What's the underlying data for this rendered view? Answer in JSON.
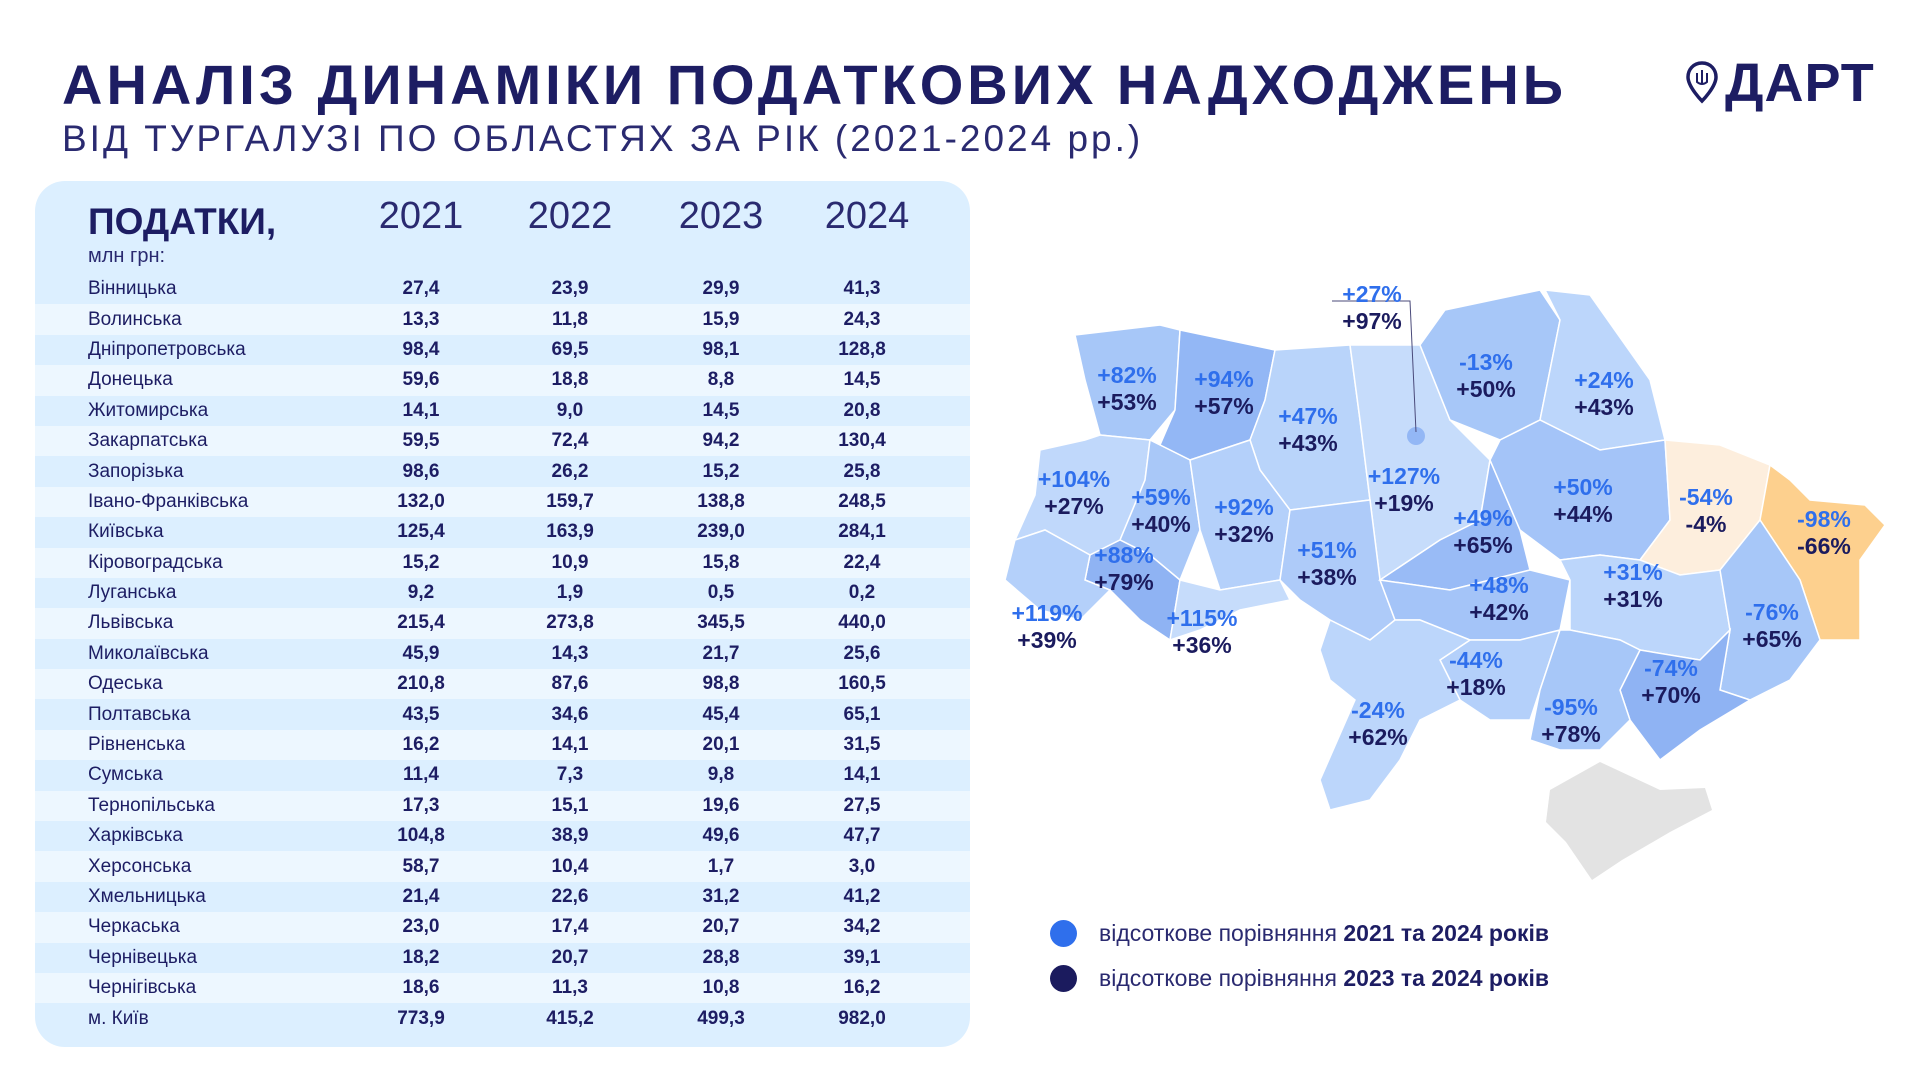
{
  "header": {
    "title": "АНАЛІЗ ДИНАМІКИ ПОДАТКОВИХ НАДХОДЖЕНЬ",
    "subtitle": "ВІД ТУРГАЛУЗІ ПО ОБЛАСТЯХ ЗА РІК (2021-2024 рр.)",
    "logo": "ДАРТ"
  },
  "colors": {
    "accent_blue": "#2f6fec",
    "dark_navy": "#1b1b5e",
    "panel": "#dcefff",
    "kharkiv": "#fdeedd",
    "luhansk": "#fdd08e",
    "crimea": "#e3e3e3"
  },
  "chart_data": [
    {
      "type": "table",
      "title": "ПОДАТКИ,",
      "unit": "млн грн:",
      "columns": [
        "2021",
        "2022",
        "2023",
        "2024"
      ],
      "rows": [
        {
          "region": "Вінницька",
          "values": [
            "27,4",
            "23,9",
            "29,9",
            "41,3"
          ]
        },
        {
          "region": "Волинська",
          "values": [
            "13,3",
            "11,8",
            "15,9",
            "24,3"
          ]
        },
        {
          "region": "Дніпропетровська",
          "values": [
            "98,4",
            "69,5",
            "98,1",
            "128,8"
          ]
        },
        {
          "region": "Донецька",
          "values": [
            "59,6",
            "18,8",
            "8,8",
            "14,5"
          ]
        },
        {
          "region": "Житомирська",
          "values": [
            "14,1",
            "9,0",
            "14,5",
            "20,8"
          ]
        },
        {
          "region": "Закарпатська",
          "values": [
            "59,5",
            "72,4",
            "94,2",
            "130,4"
          ]
        },
        {
          "region": "Запорізька",
          "values": [
            "98,6",
            "26,2",
            "15,2",
            "25,8"
          ]
        },
        {
          "region": "Івано-Франківська",
          "values": [
            "132,0",
            "159,7",
            "138,8",
            "248,5"
          ]
        },
        {
          "region": "Київська",
          "values": [
            "125,4",
            "163,9",
            "239,0",
            "284,1"
          ]
        },
        {
          "region": "Кіровоградська",
          "values": [
            "15,2",
            "10,9",
            "15,8",
            "22,4"
          ]
        },
        {
          "region": "Луганська",
          "values": [
            "9,2",
            "1,9",
            "0,5",
            "0,2"
          ]
        },
        {
          "region": "Львівська",
          "values": [
            "215,4",
            "273,8",
            "345,5",
            "440,0"
          ]
        },
        {
          "region": "Миколаївська",
          "values": [
            "45,9",
            "14,3",
            "21,7",
            "25,6"
          ]
        },
        {
          "region": "Одеська",
          "values": [
            "210,8",
            "87,6",
            "98,8",
            "160,5"
          ]
        },
        {
          "region": "Полтавська",
          "values": [
            "43,5",
            "34,6",
            "45,4",
            "65,1"
          ]
        },
        {
          "region": "Рівненська",
          "values": [
            "16,2",
            "14,1",
            "20,1",
            "31,5"
          ]
        },
        {
          "region": "Сумська",
          "values": [
            "11,4",
            "7,3",
            "9,8",
            "14,1"
          ]
        },
        {
          "region": "Тернопільська",
          "values": [
            "17,3",
            "15,1",
            "19,6",
            "27,5"
          ]
        },
        {
          "region": "Харківська",
          "values": [
            "104,8",
            "38,9",
            "49,6",
            "47,7"
          ]
        },
        {
          "region": "Херсонська",
          "values": [
            "58,7",
            "10,4",
            "1,7",
            "3,0"
          ]
        },
        {
          "region": "Хмельницька",
          "values": [
            "21,4",
            "22,6",
            "31,2",
            "41,2"
          ]
        },
        {
          "region": "Черкаська",
          "values": [
            "23,0",
            "17,4",
            "20,7",
            "34,2"
          ]
        },
        {
          "region": "Чернівецька",
          "values": [
            "18,2",
            "20,7",
            "28,8",
            "39,1"
          ]
        },
        {
          "region": "Чернігівська",
          "values": [
            "18,6",
            "11,3",
            "10,8",
            "16,2"
          ]
        },
        {
          "region": "м. Київ",
          "values": [
            "773,9",
            "415,2",
            "499,3",
            "982,0"
          ]
        }
      ]
    },
    {
      "type": "choropleth",
      "legend": [
        {
          "text": "відсоткове порівняння ",
          "bold": "2021 та 2024 років",
          "color": "#2f6fec"
        },
        {
          "text": "відсоткове порівняння ",
          "bold": "2023 та 2024 років",
          "color": "#1b1b5e"
        }
      ],
      "regions": [
        {
          "id": "volyn",
          "d21": "+82%",
          "d23": "+53%",
          "fill": "#a7c7f8"
        },
        {
          "id": "rivne",
          "d21": "+94%",
          "d23": "+57%",
          "fill": "#93b7f5"
        },
        {
          "id": "zhytomyr",
          "d21": "+47%",
          "d23": "+43%",
          "fill": "#b9d4fa"
        },
        {
          "id": "kyiv_city",
          "d21": "+27%",
          "d23": "+97%",
          "fill": "#93b7f5"
        },
        {
          "id": "kyivska",
          "d21": "+127%",
          "d23": "+19%",
          "fill": "#c6dcfb"
        },
        {
          "id": "chernihiv",
          "d21": "-13%",
          "d23": "+50%",
          "fill": "#a7c7f8"
        },
        {
          "id": "sumy",
          "d21": "+24%",
          "d23": "+43%",
          "fill": "#bcd6fb"
        },
        {
          "id": "lviv",
          "d21": "+104%",
          "d23": "+27%",
          "fill": "#c0d8fb"
        },
        {
          "id": "ternopil",
          "d21": "+59%",
          "d23": "+40%",
          "fill": "#a9c8f8"
        },
        {
          "id": "khmelnytskyi",
          "d21": "+92%",
          "d23": "+32%",
          "fill": "#b4d0fa"
        },
        {
          "id": "vinnytsia",
          "d21": "+51%",
          "d23": "+38%",
          "fill": "#aecbf9"
        },
        {
          "id": "cherkasy",
          "d21": "+49%",
          "d23": "+65%",
          "fill": "#99bbf6"
        },
        {
          "id": "poltava",
          "d21": "+50%",
          "d23": "+44%",
          "fill": "#a4c4f8"
        },
        {
          "id": "kharkiv",
          "d21": "-54%",
          "d23": "-4%",
          "fill": "#fdeedd"
        },
        {
          "id": "luhansk",
          "d21": "-98%",
          "d23": "-66%",
          "fill": "#fdd08e"
        },
        {
          "id": "ivano_frankivsk",
          "d21": "+88%",
          "d23": "+79%",
          "fill": "#8fb3f3"
        },
        {
          "id": "zakarpattia",
          "d21": "+119%",
          "d23": "+39%",
          "fill": "#b4d0fa"
        },
        {
          "id": "chernivtsi",
          "d21": "+115%",
          "d23": "+36%",
          "fill": "#c6dcfb"
        },
        {
          "id": "kirovohrad",
          "d21": "+48%",
          "d23": "+42%",
          "fill": "#a4c4f8"
        },
        {
          "id": "dnipro",
          "d21": "+31%",
          "d23": "+31%",
          "fill": "#bcd6fb"
        },
        {
          "id": "donetsk",
          "d21": "-76%",
          "d23": "+65%",
          "fill": "#a7c7f8"
        },
        {
          "id": "mykolaiv",
          "d21": "-44%",
          "d23": "+18%",
          "fill": "#b4d0fa"
        },
        {
          "id": "zaporizhzhia",
          "d21": "-74%",
          "d23": "+70%",
          "fill": "#8fb3f3"
        },
        {
          "id": "kherson",
          "d21": "-95%",
          "d23": "+78%",
          "fill": "#a7c7f8"
        },
        {
          "id": "odesa",
          "d21": "-24%",
          "d23": "+62%",
          "fill": "#bcd6fb"
        }
      ]
    }
  ]
}
